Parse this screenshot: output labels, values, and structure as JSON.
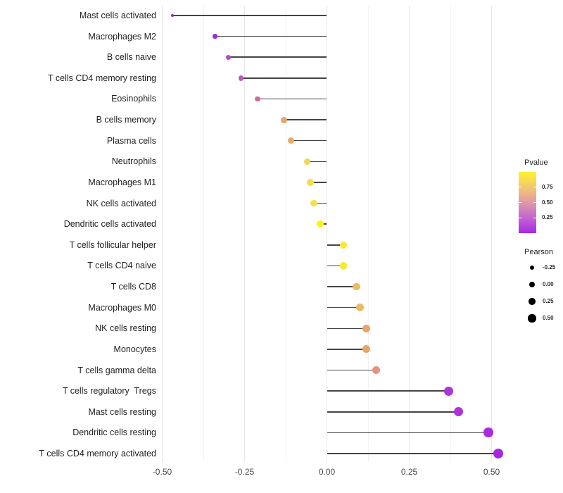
{
  "chart_data": {
    "type": "lollipop",
    "title": "",
    "xlabel": "",
    "ylabel": "",
    "x_tick_labels": [
      "-0.50",
      "-0.25",
      "0.00",
      "0.25",
      "0.50"
    ],
    "x_ticks": [
      -0.5,
      -0.25,
      0.0,
      0.25,
      0.5
    ],
    "x_minor_ticks": [
      -0.375,
      -0.125,
      0.125,
      0.375
    ],
    "xlim": [
      -0.56,
      0.56
    ],
    "grid": "vertical only, light gray major and minor",
    "legend_position": "right",
    "categories": [
      "Mast cells activated",
      "Macrophages M2",
      "B cells naive",
      "T cells CD4 memory resting",
      "Eosinophils",
      "B cells memory",
      "Plasma cells",
      "Neutrophils",
      "Macrophages M1",
      "NK cells activated",
      "Dendritic cells activated",
      "T cells follicular helper",
      "T cells CD4 naive",
      "T cells CD8",
      "Macrophages M0",
      "NK cells resting",
      "Monocytes",
      "T cells gamma delta",
      "T cells regulatory  Tregs",
      "Mast cells resting",
      "Dendritic cells resting",
      "T cells CD4 memory activated"
    ],
    "series": [
      {
        "name": "Pearson",
        "values": [
          -0.47,
          -0.34,
          -0.3,
          -0.26,
          -0.21,
          -0.13,
          -0.11,
          -0.06,
          -0.05,
          -0.04,
          -0.02,
          0.05,
          0.05,
          0.09,
          0.1,
          0.12,
          0.12,
          0.15,
          0.37,
          0.4,
          0.49,
          0.52
        ]
      }
    ],
    "point_colors": [
      "#8c2bd0",
      "#9b30d2",
      "#b44cc8",
      "#bd58c0",
      "#cc6b9e",
      "#eaa471",
      "#ecaa66",
      "#f2d750",
      "#f4de4b",
      "#f5e04a",
      "#fcf216",
      "#f7e738",
      "#f8ea2e",
      "#eebb5f",
      "#eeb964",
      "#eba466",
      "#eba467",
      "#e89181",
      "#ab35d6",
      "#ac33d8",
      "#a92be0",
      "#a825e3"
    ],
    "legends": {
      "pvalue": {
        "title": "Pvalue",
        "tick_labels": [
          "0.75",
          "0.50",
          "0.25"
        ],
        "tick_values": [
          0.75,
          0.5,
          0.25
        ],
        "high_at_top": true,
        "gradient": [
          {
            "pos": 0.0,
            "color": "#fbf22e"
          },
          {
            "pos": 0.28,
            "color": "#f2c377"
          },
          {
            "pos": 0.52,
            "color": "#dd95ab"
          },
          {
            "pos": 0.76,
            "color": "#c263d3"
          },
          {
            "pos": 1.0,
            "color": "#a828e4"
          }
        ]
      },
      "pearson": {
        "title": "Pearson",
        "entry_labels": [
          "-0.25",
          "0.00",
          "0.25",
          "0.50"
        ],
        "entry_values": [
          -0.25,
          0.0,
          0.25,
          0.5
        ],
        "dot_color": "#000000"
      }
    },
    "colors": {
      "stem": "#444444",
      "grid_major": "#e7e7e7",
      "grid_minor": "#f3f3f3",
      "axis_text": "#4a4a4a",
      "label_text": "#1f1f1f",
      "background": "#ffffff"
    }
  }
}
